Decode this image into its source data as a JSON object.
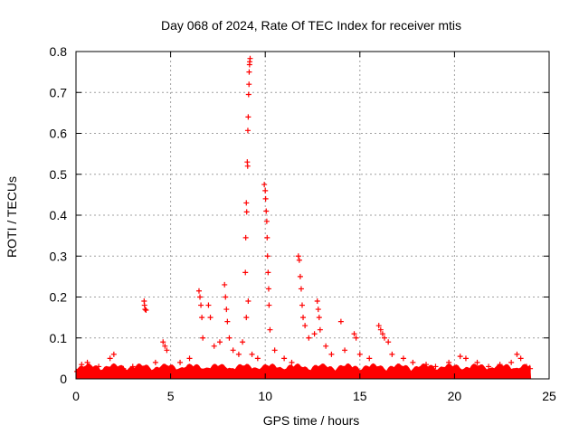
{
  "chart_data": {
    "type": "scatter",
    "title": "Day 068 of 2024, Rate Of TEC Index for receiver mtis",
    "xlabel": "GPS time / hours",
    "ylabel": "ROTI / TECUs",
    "xlim": [
      0,
      25
    ],
    "ylim": [
      0,
      0.8
    ],
    "xticks": [
      0,
      5,
      10,
      15,
      20,
      25
    ],
    "yticks": [
      0,
      0.1,
      0.2,
      0.3,
      0.4,
      0.5,
      0.6,
      0.7,
      0.8
    ],
    "grid": true,
    "marker": "+",
    "color": "#ff0000",
    "series": [
      {
        "name": "ROTI",
        "points": [
          [
            0.05,
            0.018
          ],
          [
            0.3,
            0.035
          ],
          [
            0.6,
            0.04
          ],
          [
            1.2,
            0.03
          ],
          [
            1.8,
            0.05
          ],
          [
            2.0,
            0.06
          ],
          [
            2.5,
            0.025
          ],
          [
            3.0,
            0.03
          ],
          [
            3.6,
            0.19
          ],
          [
            3.62,
            0.18
          ],
          [
            3.65,
            0.17
          ],
          [
            3.7,
            0.168
          ],
          [
            4.2,
            0.04
          ],
          [
            4.6,
            0.09
          ],
          [
            4.7,
            0.08
          ],
          [
            4.8,
            0.07
          ],
          [
            5.5,
            0.04
          ],
          [
            6.0,
            0.05
          ],
          [
            6.5,
            0.215
          ],
          [
            6.55,
            0.2
          ],
          [
            6.6,
            0.18
          ],
          [
            6.65,
            0.15
          ],
          [
            6.7,
            0.1
          ],
          [
            7.0,
            0.18
          ],
          [
            7.1,
            0.15
          ],
          [
            7.3,
            0.08
          ],
          [
            7.6,
            0.09
          ],
          [
            7.85,
            0.23
          ],
          [
            7.9,
            0.2
          ],
          [
            7.95,
            0.17
          ],
          [
            8.0,
            0.14
          ],
          [
            8.1,
            0.1
          ],
          [
            8.3,
            0.07
          ],
          [
            8.6,
            0.06
          ],
          [
            8.8,
            0.09
          ],
          [
            8.95,
            0.26
          ],
          [
            8.97,
            0.345
          ],
          [
            9.0,
            0.43
          ],
          [
            9.02,
            0.408
          ],
          [
            9.05,
            0.53
          ],
          [
            9.07,
            0.52
          ],
          [
            9.08,
            0.607
          ],
          [
            9.1,
            0.64
          ],
          [
            9.12,
            0.695
          ],
          [
            9.14,
            0.72
          ],
          [
            9.15,
            0.75
          ],
          [
            9.17,
            0.768
          ],
          [
            9.18,
            0.775
          ],
          [
            9.2,
            0.783
          ],
          [
            9.1,
            0.19
          ],
          [
            9.0,
            0.15
          ],
          [
            9.3,
            0.06
          ],
          [
            9.6,
            0.05
          ],
          [
            9.95,
            0.475
          ],
          [
            10.0,
            0.46
          ],
          [
            10.02,
            0.44
          ],
          [
            10.05,
            0.41
          ],
          [
            10.08,
            0.385
          ],
          [
            10.1,
            0.345
          ],
          [
            10.12,
            0.3
          ],
          [
            10.15,
            0.26
          ],
          [
            10.18,
            0.22
          ],
          [
            10.2,
            0.18
          ],
          [
            10.25,
            0.12
          ],
          [
            10.5,
            0.07
          ],
          [
            11.0,
            0.05
          ],
          [
            11.4,
            0.04
          ],
          [
            11.75,
            0.3
          ],
          [
            11.8,
            0.29
          ],
          [
            11.85,
            0.25
          ],
          [
            11.9,
            0.22
          ],
          [
            11.95,
            0.18
          ],
          [
            12.0,
            0.15
          ],
          [
            12.1,
            0.13
          ],
          [
            12.3,
            0.1
          ],
          [
            12.6,
            0.11
          ],
          [
            12.75,
            0.19
          ],
          [
            12.8,
            0.17
          ],
          [
            12.85,
            0.15
          ],
          [
            12.9,
            0.12
          ],
          [
            13.2,
            0.08
          ],
          [
            13.5,
            0.06
          ],
          [
            14.0,
            0.14
          ],
          [
            14.2,
            0.07
          ],
          [
            14.7,
            0.11
          ],
          [
            14.8,
            0.1
          ],
          [
            15.0,
            0.06
          ],
          [
            15.5,
            0.05
          ],
          [
            16.0,
            0.13
          ],
          [
            16.1,
            0.12
          ],
          [
            16.2,
            0.11
          ],
          [
            16.3,
            0.1
          ],
          [
            16.5,
            0.09
          ],
          [
            16.7,
            0.06
          ],
          [
            17.3,
            0.05
          ],
          [
            17.8,
            0.04
          ],
          [
            18.5,
            0.035
          ],
          [
            19.0,
            0.03
          ],
          [
            19.7,
            0.04
          ],
          [
            20.3,
            0.055
          ],
          [
            20.6,
            0.05
          ],
          [
            21.2,
            0.04
          ],
          [
            21.8,
            0.03
          ],
          [
            22.4,
            0.035
          ],
          [
            23.0,
            0.04
          ],
          [
            23.3,
            0.06
          ],
          [
            23.5,
            0.05
          ],
          [
            23.8,
            0.03
          ],
          [
            24.0,
            0.025
          ]
        ]
      }
    ]
  }
}
